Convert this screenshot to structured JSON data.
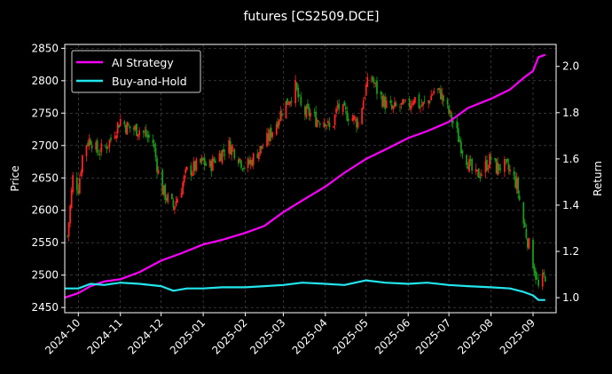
{
  "chart_data": {
    "type": "line",
    "title": "futures [CS2509.DCE]",
    "ylabel_left": "Price",
    "ylabel_right": "Return",
    "xlim": [
      "2024-09-21",
      "2025-09-18"
    ],
    "ylim_left": [
      2442,
      2856
    ],
    "ylim_right": [
      0.935,
      2.095
    ],
    "grid": true,
    "legend_position": "top-left",
    "x_ticks": [
      "2024-10",
      "2024-11",
      "2024-12",
      "2025-01",
      "2025-02",
      "2025-03",
      "2025-04",
      "2025-05",
      "2025-06",
      "2025-07",
      "2025-08",
      "2025-09"
    ],
    "x_tick_dates": [
      "2024-10-01",
      "2024-11-01",
      "2024-12-01",
      "2025-01-01",
      "2025-02-01",
      "2025-03-01",
      "2025-04-01",
      "2025-05-01",
      "2025-06-01",
      "2025-07-01",
      "2025-08-01",
      "2025-09-01"
    ],
    "y_ticks_left": [
      2450,
      2500,
      2550,
      2600,
      2650,
      2700,
      2750,
      2800,
      2850
    ],
    "y_ticks_right": [
      1.0,
      1.2,
      1.4,
      1.6,
      1.8,
      2.0
    ],
    "colors": {
      "up": "#ff2222",
      "down": "#1a9a1a",
      "ai": "#ff00ff",
      "bh": "#22e5ee",
      "grid": "#555555"
    },
    "price_series": {
      "name": "CS2509.DCE",
      "x": [
        "2024-09-23",
        "2024-09-27",
        "2024-10-01",
        "2024-10-05",
        "2024-10-10",
        "2024-10-15",
        "2024-10-20",
        "2024-10-25",
        "2024-11-01",
        "2024-11-05",
        "2024-11-10",
        "2024-11-15",
        "2024-11-20",
        "2024-11-25",
        "2024-12-01",
        "2024-12-05",
        "2024-12-10",
        "2024-12-15",
        "2024-12-20",
        "2024-12-25",
        "2025-01-01",
        "2025-01-05",
        "2025-01-10",
        "2025-01-15",
        "2025-01-20",
        "2025-01-25",
        "2025-02-01",
        "2025-02-05",
        "2025-02-10",
        "2025-02-15",
        "2025-02-20",
        "2025-02-25",
        "2025-03-01",
        "2025-03-05",
        "2025-03-10",
        "2025-03-15",
        "2025-03-20",
        "2025-03-25",
        "2025-04-01",
        "2025-04-05",
        "2025-04-10",
        "2025-04-15",
        "2025-04-20",
        "2025-04-25",
        "2025-05-01",
        "2025-05-05",
        "2025-05-10",
        "2025-05-15",
        "2025-05-20",
        "2025-05-25",
        "2025-06-01",
        "2025-06-05",
        "2025-06-10",
        "2025-06-15",
        "2025-06-20",
        "2025-06-25",
        "2025-07-01",
        "2025-07-05",
        "2025-07-10",
        "2025-07-15",
        "2025-07-20",
        "2025-07-25",
        "2025-08-01",
        "2025-08-05",
        "2025-08-10",
        "2025-08-15",
        "2025-08-20",
        "2025-08-25",
        "2025-09-01",
        "2025-09-05",
        "2025-09-10"
      ],
      "values": [
        2560,
        2650,
        2635,
        2700,
        2710,
        2690,
        2695,
        2710,
        2740,
        2730,
        2725,
        2725,
        2715,
        2705,
        2635,
        2620,
        2605,
        2630,
        2660,
        2665,
        2675,
        2665,
        2680,
        2690,
        2700,
        2690,
        2665,
        2675,
        2690,
        2700,
        2720,
        2740,
        2760,
        2770,
        2790,
        2750,
        2750,
        2740,
        2740,
        2720,
        2760,
        2750,
        2745,
        2735,
        2790,
        2805,
        2780,
        2765,
        2755,
        2760,
        2760,
        2775,
        2760,
        2765,
        2785,
        2780,
        2750,
        2730,
        2700,
        2675,
        2650,
        2660,
        2680,
        2665,
        2670,
        2660,
        2640,
        2580,
        2520,
        2480,
        2500
      ]
    },
    "series": [
      {
        "name": "AI Strategy",
        "x": [
          "2024-09-21",
          "2024-10-01",
          "2024-10-10",
          "2024-10-20",
          "2024-11-01",
          "2024-11-15",
          "2024-12-01",
          "2024-12-15",
          "2025-01-01",
          "2025-01-15",
          "2025-02-01",
          "2025-02-15",
          "2025-03-01",
          "2025-03-15",
          "2025-04-01",
          "2025-04-15",
          "2025-05-01",
          "2025-05-15",
          "2025-06-01",
          "2025-06-15",
          "2025-07-01",
          "2025-07-15",
          "2025-08-01",
          "2025-08-15",
          "2025-08-25",
          "2025-09-01",
          "2025-09-05",
          "2025-09-10"
        ],
        "values": [
          1.0,
          1.02,
          1.05,
          1.07,
          1.08,
          1.11,
          1.16,
          1.19,
          1.23,
          1.25,
          1.28,
          1.31,
          1.37,
          1.42,
          1.48,
          1.54,
          1.6,
          1.64,
          1.69,
          1.72,
          1.76,
          1.82,
          1.86,
          1.9,
          1.95,
          1.98,
          2.04,
          2.05
        ]
      },
      {
        "name": "Buy-and-Hold",
        "x": [
          "2024-09-21",
          "2024-10-01",
          "2024-10-10",
          "2024-10-20",
          "2024-11-01",
          "2024-11-15",
          "2024-12-01",
          "2024-12-10",
          "2024-12-20",
          "2025-01-01",
          "2025-01-15",
          "2025-02-01",
          "2025-02-15",
          "2025-03-01",
          "2025-03-15",
          "2025-04-01",
          "2025-04-15",
          "2025-05-01",
          "2025-05-15",
          "2025-06-01",
          "2025-06-15",
          "2025-07-01",
          "2025-07-15",
          "2025-08-01",
          "2025-08-15",
          "2025-08-25",
          "2025-09-01",
          "2025-09-05",
          "2025-09-10"
        ],
        "values": [
          1.04,
          1.04,
          1.06,
          1.055,
          1.065,
          1.06,
          1.05,
          1.03,
          1.04,
          1.04,
          1.045,
          1.045,
          1.05,
          1.055,
          1.065,
          1.06,
          1.055,
          1.075,
          1.065,
          1.06,
          1.065,
          1.055,
          1.05,
          1.045,
          1.04,
          1.025,
          1.01,
          0.99,
          0.99
        ]
      }
    ]
  }
}
